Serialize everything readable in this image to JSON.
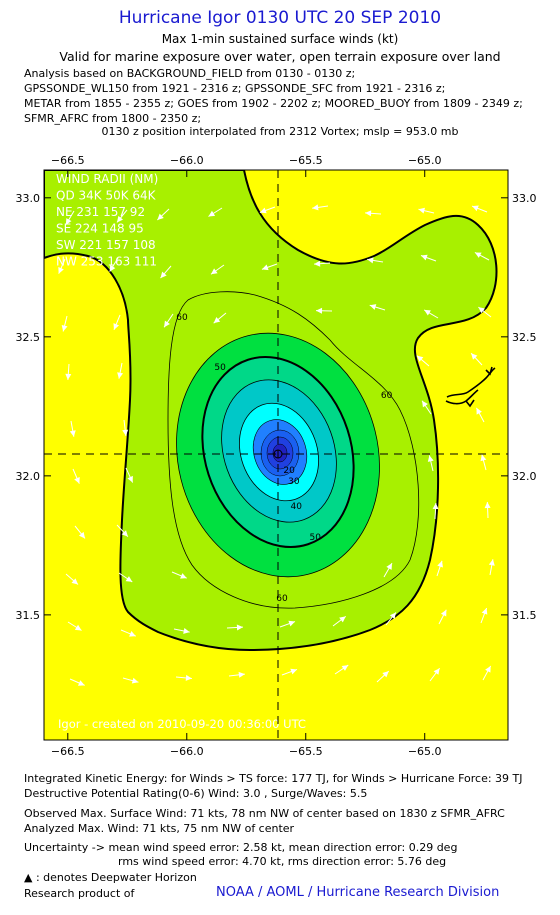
{
  "header": {
    "title": "Hurricane Igor 0130 UTC 20 SEP 2010",
    "subtitle1": "Max 1-min sustained surface winds (kt)",
    "subtitle2": "Valid for marine exposure over water, open terrain exposure over land"
  },
  "analysis_lines": [
    "Analysis based on BACKGROUND_FIELD from 0130 - 0130 z;",
    "GPSSONDE_WL150 from 1921 - 2316 z; GPSSONDE_SFC from 1921 - 2316 z;",
    "METAR from 1855 - 2355 z; GOES from 1902 - 2202 z; MOORED_BUOY from 1809 - 2349 z;",
    "SFMR_AFRC from 1800 - 2350 z;"
  ],
  "position_line": "0130 z position interpolated from 2312 Vortex; mslp = 953.0 mb",
  "chart_data": {
    "type": "contour",
    "xlim": [
      -66.6,
      -64.65
    ],
    "ylim": [
      31.05,
      33.1
    ],
    "x_ticks": [
      -66.5,
      -66.0,
      -65.5,
      -65.0
    ],
    "x_tick_labels": [
      "−66.5",
      "−66.0",
      "−65.5",
      "−65.0"
    ],
    "y_ticks": [
      31.5,
      32.0,
      32.5,
      33.0
    ],
    "y_tick_labels": [
      "31.5",
      "32.0",
      "32.5",
      "33.0"
    ],
    "center": {
      "lon": -65.6,
      "lat": 32.09
    },
    "contour_labels": [
      {
        "text": "60",
        "lon": -66.02,
        "lat": 32.56
      },
      {
        "text": "60",
        "lon": -65.16,
        "lat": 32.28
      },
      {
        "text": "60",
        "lon": -65.6,
        "lat": 31.55
      },
      {
        "text": "50",
        "lon": -65.86,
        "lat": 32.38
      },
      {
        "text": "50",
        "lon": -65.46,
        "lat": 31.77
      },
      {
        "text": "40",
        "lon": -65.54,
        "lat": 31.88
      },
      {
        "text": "30",
        "lon": -65.55,
        "lat": 31.97
      },
      {
        "text": "20",
        "lon": -65.57,
        "lat": 32.01
      }
    ],
    "wind_radii": {
      "header": "WIND RADII (NM)",
      "columns": "QD 34K 50K 64K",
      "rows": [
        {
          "quadrant": "NE",
          "r34": 231,
          "r50": 157,
          "r64": 92
        },
        {
          "quadrant": "SE",
          "r34": 224,
          "r50": 148,
          "r64": 95
        },
        {
          "quadrant": "SW",
          "r34": 221,
          "r50": 157,
          "r64": 108
        },
        {
          "quadrant": "NW",
          "r34": 253,
          "r50": 163,
          "r64": 111
        }
      ]
    },
    "wind_radii_lines": [
      "WIND RADII (NM)",
      "QD 34K 50K 64K",
      "NE 231 157  92",
      "SE 224 148  95",
      "SW 221 157 108",
      "NW 253 163 111"
    ],
    "credit": "Igor - created on 2010-09-20 00:36:00 UTC",
    "colors": {
      "gt_hurricane": "#ffff00",
      "ts_60": "#a8f000",
      "50_60": "#00e040",
      "40_50": "#00d888",
      "30_40": "#00c8c8",
      "20_30": "#00ffff",
      "10_20": "#2080ff",
      "core": "#2020d0"
    }
  },
  "footer": {
    "ike": "Integrated Kinetic Energy:  for Winds > TS force: 177 TJ,  for Winds > Hurricane Force: 39 TJ",
    "dpr": "Destructive Potential Rating(0-6)   Wind: 3.0 , Surge/Waves: 5.5",
    "obs_max": "Observed Max. Surface Wind: 71 kts, 78 nm NW of center based on 1830 z SFMR_AFRC",
    "analyzed_max": "Analyzed Max. Wind: 71 kts, 75 nm NW of center",
    "uncertainty1": "Uncertainty -> mean wind speed error: 2.58 kt,   mean direction error: 0.29 deg",
    "uncertainty2": "rms wind speed error: 4.70 kt,   rms direction error: 5.76 deg",
    "deepwater": "▲ : denotes Deepwater Horizon",
    "research": "Research product of",
    "noaa": "NOAA / AOML / Hurricane Research Division"
  }
}
